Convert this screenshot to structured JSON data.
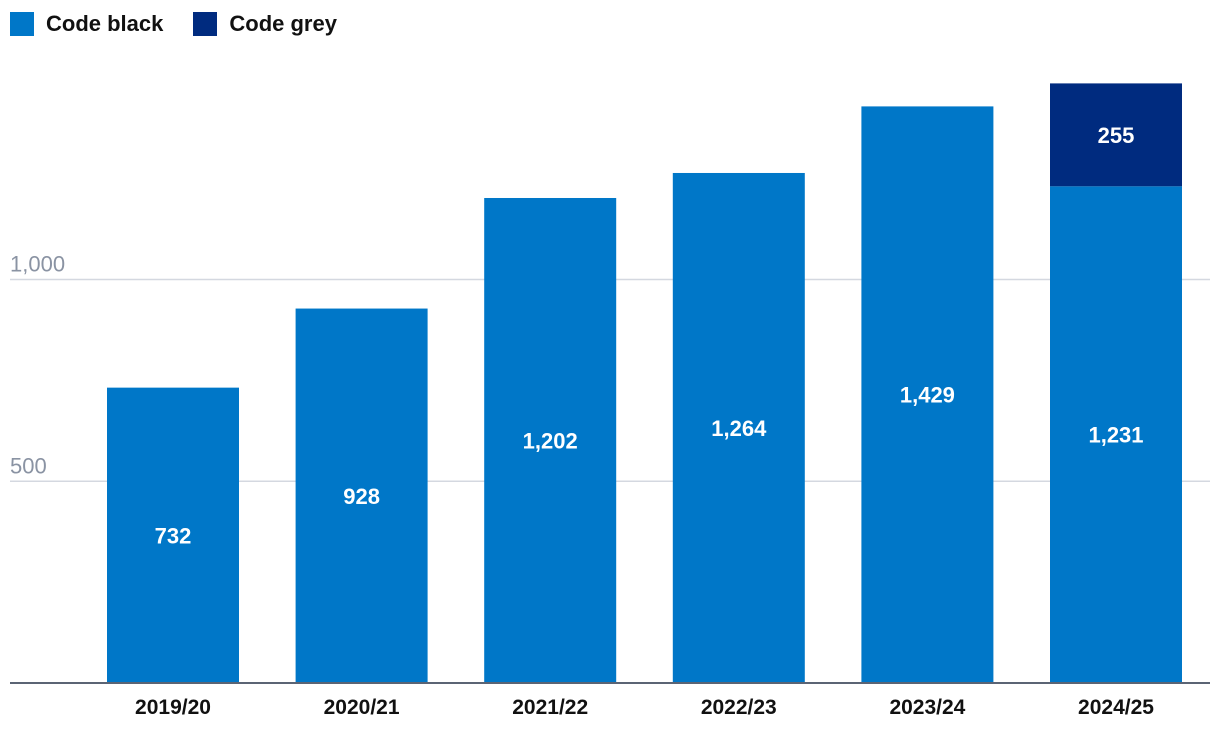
{
  "legend": [
    {
      "label": "Code black",
      "color": "#0077c8"
    },
    {
      "label": "Code grey",
      "color": "#002b7f"
    }
  ],
  "chart_data": {
    "type": "bar",
    "stacked": true,
    "categories": [
      "2019/20",
      "2020/21",
      "2021/22",
      "2022/23",
      "2023/24",
      "2024/25"
    ],
    "series": [
      {
        "name": "Code black",
        "color": "#0077c8",
        "values": [
          732,
          928,
          1202,
          1264,
          1429,
          1231
        ],
        "labels": [
          "732",
          "928",
          "1,202",
          "1,264",
          "1,429",
          "1,231"
        ]
      },
      {
        "name": "Code grey",
        "color": "#002b7f",
        "values": [
          null,
          null,
          null,
          null,
          null,
          255
        ],
        "labels": [
          null,
          null,
          null,
          null,
          null,
          "255"
        ]
      }
    ],
    "yticks": [
      500,
      1000
    ],
    "ytick_labels": [
      "500",
      "1,000"
    ],
    "ylim": [
      0,
      1550
    ],
    "grid": true,
    "legend_position": "top-left",
    "title": "",
    "xlabel": "",
    "ylabel": ""
  }
}
